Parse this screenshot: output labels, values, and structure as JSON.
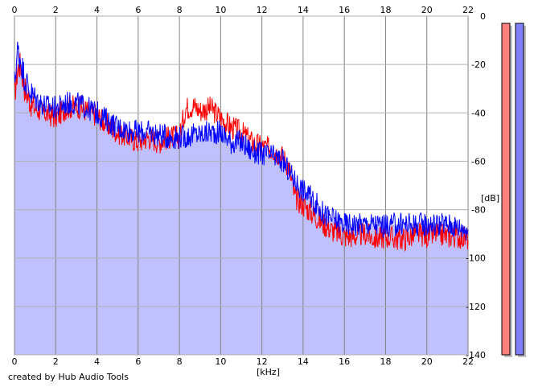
{
  "chart_data": {
    "type": "area",
    "xlabel": "[kHz]",
    "ylabel": "[dB]",
    "xlim": [
      0,
      22
    ],
    "ylim": [
      -140,
      0
    ],
    "x_ticks": [
      0,
      2,
      4,
      6,
      8,
      10,
      12,
      14,
      16,
      18,
      20,
      22
    ],
    "y_ticks": [
      0,
      -20,
      -40,
      -60,
      -80,
      -100,
      -120,
      -140
    ],
    "grid": true,
    "series": [
      {
        "color": "#ff0000",
        "x": [
          0,
          0.15,
          0.3,
          0.5,
          0.8,
          1.0,
          1.5,
          2.0,
          2.5,
          3.0,
          3.5,
          4.0,
          4.5,
          5.0,
          5.5,
          6.0,
          6.5,
          7.0,
          7.5,
          8.0,
          8.3,
          8.7,
          9.0,
          9.5,
          10.0,
          10.5,
          11.0,
          11.5,
          12.0,
          12.5,
          13.0,
          13.3,
          13.6,
          14.0,
          14.5,
          15.0,
          15.5,
          16.0,
          16.5,
          17.0,
          17.5,
          18.0,
          18.5,
          19.0,
          19.5,
          20.0,
          20.5,
          21.0,
          21.5,
          22.0
        ],
        "values": [
          -33,
          -22,
          -20,
          -30,
          -36,
          -38,
          -40,
          -42,
          -38,
          -37,
          -39,
          -41,
          -45,
          -48,
          -50,
          -52,
          -50,
          -52,
          -50,
          -50,
          -38,
          -37,
          -39,
          -38,
          -42,
          -46,
          -48,
          -52,
          -54,
          -55,
          -58,
          -62,
          -75,
          -78,
          -82,
          -86,
          -89,
          -91,
          -91,
          -90,
          -92,
          -91,
          -92,
          -92,
          -90,
          -91,
          -90,
          -91,
          -91,
          -92
        ]
      },
      {
        "color": "#0000ff",
        "x": [
          0,
          0.15,
          0.3,
          0.5,
          0.8,
          1.0,
          1.5,
          2.0,
          2.5,
          3.0,
          3.5,
          4.0,
          4.5,
          5.0,
          5.5,
          6.0,
          6.5,
          7.0,
          7.5,
          8.0,
          8.3,
          8.7,
          9.0,
          9.5,
          10.0,
          10.5,
          11.0,
          11.5,
          12.0,
          12.5,
          13.0,
          13.3,
          13.6,
          14.0,
          14.5,
          15.0,
          15.5,
          16.0,
          16.5,
          17.0,
          17.5,
          18.0,
          18.5,
          19.0,
          19.5,
          20.0,
          20.5,
          21.0,
          21.5,
          22.0
        ],
        "values": [
          -28,
          -14,
          -18,
          -26,
          -32,
          -34,
          -37,
          -38,
          -36,
          -36,
          -38,
          -40,
          -43,
          -46,
          -47,
          -48,
          -48,
          -49,
          -50,
          -50,
          -50,
          -49,
          -49,
          -48,
          -48,
          -52,
          -52,
          -56,
          -57,
          -58,
          -60,
          -64,
          -68,
          -72,
          -76,
          -82,
          -84,
          -86,
          -86,
          -86,
          -86,
          -87,
          -86,
          -86,
          -86,
          -86,
          -86,
          -86,
          -87,
          -88
        ]
      }
    ],
    "level_meters": [
      {
        "color": "#ff8080",
        "level_db": -3
      },
      {
        "color": "#8080ff",
        "level_db": -3
      }
    ]
  },
  "axes": {
    "x_unit": "[kHz]",
    "y_unit": "[dB]"
  },
  "footer": {
    "credit": "created by Hub Audio Tools"
  }
}
